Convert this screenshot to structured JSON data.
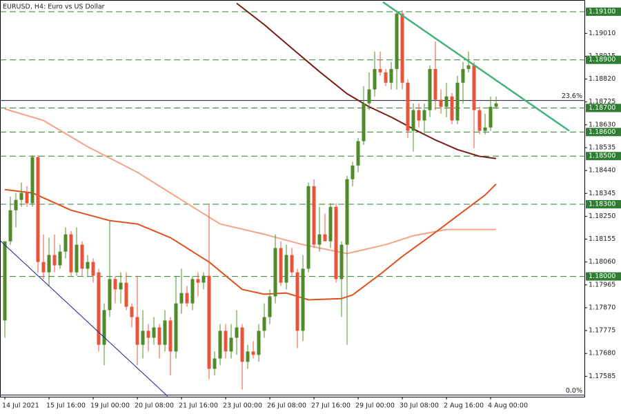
{
  "chart_data": {
    "type": "candlestick",
    "title": "EURUSD, H4:  Euro vs US Dollar",
    "xlim": [
      -0.875,
      105
    ],
    "xticks": [
      {
        "value": 0,
        "label": "14 Jul 2021"
      },
      {
        "value": 8,
        "label": "15 Jul 16:00"
      },
      {
        "value": 16,
        "label": "19 Jul 00:00"
      },
      {
        "value": 24,
        "label": "20 Jul 08:00"
      },
      {
        "value": 32,
        "label": "21 Jul 16:00"
      },
      {
        "value": 40,
        "label": "23 Jul 00:00"
      },
      {
        "value": 48,
        "label": "26 Jul 08:00"
      },
      {
        "value": 56,
        "label": "27 Jul 16:00"
      },
      {
        "value": 64,
        "label": "29 Jul 00:00"
      },
      {
        "value": 72,
        "label": "30 Jul 08:00"
      },
      {
        "value": 80,
        "label": "2 Aug 16:00"
      },
      {
        "value": 88,
        "label": "4 Aug 00:00"
      }
    ],
    "ylim": [
      1.175,
      1.1914
    ],
    "yticks": [
      {
        "value": 1.1901,
        "label": "1.19010"
      },
      {
        "value": 1.18915,
        "label": "1.18915"
      },
      {
        "value": 1.1882,
        "label": "1.18820"
      },
      {
        "value": 1.18725,
        "label": "1.18725"
      },
      {
        "value": 1.1863,
        "label": "1.18630"
      },
      {
        "value": 1.18535,
        "label": "1.18535"
      },
      {
        "value": 1.1844,
        "label": "1.18440"
      },
      {
        "value": 1.18345,
        "label": "1.18345"
      },
      {
        "value": 1.1825,
        "label": "1.18250"
      },
      {
        "value": 1.18155,
        "label": "1.18155"
      },
      {
        "value": 1.1806,
        "label": "1.18060"
      },
      {
        "value": 1.17965,
        "label": "1.17965"
      },
      {
        "value": 1.1787,
        "label": "1.17870"
      },
      {
        "value": 1.17775,
        "label": "1.17775"
      },
      {
        "value": 1.1768,
        "label": "1.17680"
      },
      {
        "value": 1.17585,
        "label": "1.17585"
      }
    ],
    "open": [
      1.17817,
      1.18146,
      1.18275,
      1.18318,
      1.18347,
      1.18304,
      1.18496,
      1.1806,
      1.18017,
      1.18089,
      1.18046,
      1.18103,
      1.18175,
      1.18017,
      1.18132,
      1.18032,
      1.1806,
      1.18017,
      1.17716,
      1.1786,
      1.17989,
      1.17946,
      1.17974,
      1.17874,
      1.17831,
      1.17716,
      1.17774,
      1.17745,
      1.17788,
      1.17716,
      1.17817,
      1.17688,
      1.17888,
      1.17931,
      1.17888,
      1.17989,
      1.17974,
      1.18003,
      1.17616,
      1.17659,
      1.17774,
      1.17688,
      1.17745,
      1.17788,
      1.17645,
      1.17688,
      1.17674,
      1.17774,
      1.17831,
      1.17917,
      1.18118,
      1.17974,
      1.18089,
      1.18017,
      1.17774,
      1.18032,
      1.18375,
      1.18132,
      1.18175,
      1.18146,
      1.18289,
      1.17989,
      1.18132,
      1.18404,
      1.18461,
      1.18562,
      1.18719,
      1.18777,
      1.18862,
      1.18848,
      1.18805,
      1.18862,
      1.19092,
      1.18805,
      1.18605,
      1.18691,
      1.18648,
      1.18691,
      1.18862,
      1.18734,
      1.18705,
      1.18748,
      1.18648,
      1.18805,
      1.18862,
      1.18877,
      1.18691,
      1.18605,
      1.18619,
      1.18705
    ],
    "high": [
      1.18146,
      1.18332,
      1.18347,
      1.1839,
      1.18375,
      1.18504,
      1.18504,
      1.18175,
      1.18161,
      1.18175,
      1.18132,
      1.18204,
      1.18189,
      1.18204,
      1.18146,
      1.18089,
      1.18075,
      1.18032,
      1.17888,
      1.18232,
      1.18003,
      1.18017,
      1.18017,
      1.17888,
      1.18003,
      1.1786,
      1.17802,
      1.17831,
      1.17802,
      1.1786,
      1.17831,
      1.18003,
      1.18032,
      1.1796,
      1.18003,
      1.18017,
      1.18017,
      1.18304,
      1.17688,
      1.17802,
      1.17802,
      1.17802,
      1.1786,
      1.17802,
      1.17716,
      1.17731,
      1.17802,
      1.17888,
      1.17946,
      1.18175,
      1.18146,
      1.18132,
      1.18118,
      1.18032,
      1.18089,
      1.1839,
      1.18404,
      1.18289,
      1.18261,
      1.18304,
      1.18304,
      1.18146,
      1.18418,
      1.18476,
      1.18576,
      1.18791,
      1.18848,
      1.18934,
      1.18934,
      1.18862,
      1.18891,
      1.19106,
      1.19106,
      1.1882,
      1.18719,
      1.18719,
      1.18719,
      1.18877,
      1.18977,
      1.18777,
      1.18805,
      1.18762,
      1.18834,
      1.18891,
      1.18934,
      1.18891,
      1.18705,
      1.18676,
      1.18748,
      1.18748
    ],
    "low": [
      1.17745,
      1.18132,
      1.18204,
      1.18289,
      1.18289,
      1.18289,
      1.18017,
      1.17989,
      1.1796,
      1.18017,
      1.18032,
      1.18075,
      1.18003,
      1.18003,
      1.18003,
      1.18003,
      1.17974,
      1.17688,
      1.17631,
      1.17831,
      1.17888,
      1.17888,
      1.1786,
      1.17788,
      1.17631,
      1.17659,
      1.17688,
      1.17716,
      1.17659,
      1.17688,
      1.17588,
      1.17659,
      1.17845,
      1.17874,
      1.1786,
      1.17917,
      1.17946,
      1.17573,
      1.17588,
      1.17631,
      1.17659,
      1.17659,
      1.17674,
      1.1753,
      1.17616,
      1.17659,
      1.17645,
      1.17745,
      1.17802,
      1.17888,
      1.1796,
      1.17946,
      1.18003,
      1.17702,
      1.17731,
      1.18017,
      1.18118,
      1.18103,
      1.18146,
      1.18118,
      1.17974,
      1.17831,
      1.17716,
      1.18375,
      1.18433,
      1.18547,
      1.18691,
      1.18748,
      1.18834,
      1.18791,
      1.18777,
      1.18777,
      1.18777,
      1.18576,
      1.18519,
      1.18619,
      1.1859,
      1.18662,
      1.18691,
      1.18676,
      1.18662,
      1.18633,
      1.18633,
      1.18719,
      1.18848,
      1.18533,
      1.1859,
      1.1859,
      1.18605,
      1.18696
    ],
    "close": [
      1.18146,
      1.18275,
      1.18318,
      1.18347,
      1.18304,
      1.18496,
      1.1806,
      1.18017,
      1.18089,
      1.18046,
      1.18103,
      1.18175,
      1.18017,
      1.18132,
      1.18032,
      1.1806,
      1.18003,
      1.17716,
      1.1786,
      1.17989,
      1.17946,
      1.17974,
      1.17874,
      1.17831,
      1.17716,
      1.17774,
      1.17745,
      1.17788,
      1.17716,
      1.17817,
      1.17688,
      1.17888,
      1.17931,
      1.17888,
      1.17989,
      1.17974,
      1.18003,
      1.17616,
      1.17659,
      1.17774,
      1.17688,
      1.17745,
      1.17788,
      1.17645,
      1.17688,
      1.17674,
      1.17774,
      1.17831,
      1.17917,
      1.18118,
      1.17974,
      1.18089,
      1.18017,
      1.17774,
      1.18032,
      1.18375,
      1.18132,
      1.18175,
      1.18146,
      1.18289,
      1.17989,
      1.18132,
      1.18404,
      1.18461,
      1.18562,
      1.18719,
      1.18777,
      1.18862,
      1.18848,
      1.18805,
      1.18862,
      1.19092,
      1.18805,
      1.18605,
      1.18691,
      1.18648,
      1.18691,
      1.18862,
      1.18734,
      1.18705,
      1.18748,
      1.18648,
      1.18805,
      1.18862,
      1.18877,
      1.18691,
      1.18605,
      1.18619,
      1.18705,
      1.18719
    ],
    "up_color": "#4f8a2b",
    "down_color": "#e8553a",
    "lines": [
      {
        "color": "#7a1a14",
        "x": [
          42,
          47,
          52,
          57,
          62,
          66,
          70,
          74,
          78,
          82,
          86,
          89
        ],
        "values": [
          1.19135,
          1.19046,
          1.18948,
          1.18851,
          1.18759,
          1.18705,
          1.18662,
          1.18613,
          1.18567,
          1.18527,
          1.18499,
          1.1849
        ]
      },
      {
        "color": "#f4a383",
        "x": [
          0,
          7,
          15,
          24,
          32,
          39,
          47,
          54,
          62,
          69,
          74,
          80,
          89
        ],
        "values": [
          1.18696,
          1.18648,
          1.18539,
          1.18433,
          1.18318,
          1.18218,
          1.18175,
          1.18132,
          1.18095,
          1.18132,
          1.18169,
          1.18195,
          1.18195
        ]
      },
      {
        "color": "#e14f1c",
        "x": [
          0,
          5,
          12,
          19,
          24,
          30,
          37,
          43,
          47,
          51,
          55,
          61,
          63,
          68,
          72,
          77,
          82,
          87,
          89
        ],
        "values": [
          1.18361,
          1.18347,
          1.18275,
          1.18232,
          1.18218,
          1.18161,
          1.1806,
          1.17946,
          1.17926,
          1.17931,
          1.17903,
          1.17908,
          1.17923,
          1.18009,
          1.18083,
          1.18166,
          1.18252,
          1.18338,
          1.18384
        ]
      }
    ],
    "trendlines": [
      {
        "color": "#1c1c8a",
        "x": [
          -1,
          29.5
        ],
        "values": [
          1.18152,
          1.17502
        ]
      },
      {
        "color": "#44b07a",
        "x": [
          68.5,
          102.25
        ],
        "values": [
          1.1914,
          1.18605
        ]
      }
    ],
    "levels": [
      {
        "value": 1.191,
        "label": "1.19100"
      },
      {
        "value": 1.189,
        "label": "1.18900"
      },
      {
        "value": 1.187,
        "label": "1.18700"
      },
      {
        "value": 1.186,
        "label": "1.18600"
      },
      {
        "value": 1.185,
        "label": "1.18500"
      },
      {
        "value": 1.183,
        "label": "1.18300"
      },
      {
        "value": 1.18,
        "label": "1.18000"
      }
    ],
    "level_color": "#2e7d32",
    "fibonacci": [
      {
        "value": 1.18731,
        "label": "23.6%"
      },
      {
        "value": 1.17507,
        "label": "0.0%"
      }
    ],
    "fibonacci_color": "#1a1a3a"
  }
}
